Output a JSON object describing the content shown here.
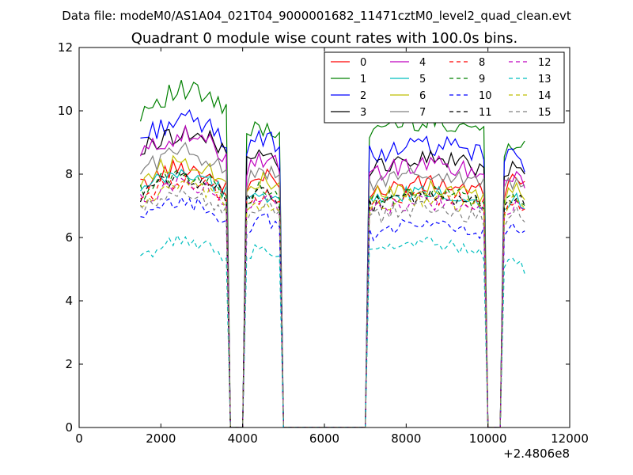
{
  "figure": {
    "suptitle": "Data file: modeM0/AS1A04_021T04_9000001682_11471cztM0_level2_quad_clean.evt"
  },
  "chart_data": {
    "type": "line",
    "title": "Quadrant 0 module wise count rates with 100.0s bins.",
    "xlabel": "",
    "ylabel": "",
    "xlim": [
      0,
      12000
    ],
    "ylim": [
      0,
      12
    ],
    "x_offset_label": "+2.4806e8",
    "x_ticks": [
      0,
      2000,
      4000,
      6000,
      8000,
      10000,
      12000
    ],
    "y_ticks": [
      0,
      2,
      4,
      6,
      8,
      10,
      12
    ],
    "grid": false,
    "legend_placement": "top-right",
    "legend_columns": 4,
    "x_segments": [
      {
        "start": 1500,
        "end": 3600,
        "step": 100
      },
      {
        "start": 3700,
        "end": 4000,
        "step": 100
      },
      {
        "start": 4100,
        "end": 4900,
        "step": 100
      },
      {
        "start": 5000,
        "end": 7000,
        "step": 100
      },
      {
        "start": 7100,
        "end": 9900,
        "step": 100
      },
      {
        "start": 10000,
        "end": 10300,
        "step": 100
      },
      {
        "start": 10400,
        "end": 10900,
        "step": 100
      }
    ],
    "series": [
      {
        "name": "0",
        "color": "#ff0000",
        "dash": "solid",
        "seg_levels": [
          7.6,
          0,
          7.6,
          0,
          7.4,
          0,
          7.5
        ]
      },
      {
        "name": "1",
        "color": "#008000",
        "dash": "solid",
        "seg_levels": [
          10.0,
          0,
          9.2,
          0,
          9.4,
          0,
          8.8
        ]
      },
      {
        "name": "2",
        "color": "#0000ff",
        "dash": "solid",
        "seg_levels": [
          9.1,
          0,
          8.8,
          0,
          8.6,
          0,
          8.3
        ]
      },
      {
        "name": "3",
        "color": "#000000",
        "dash": "solid",
        "seg_levels": [
          8.7,
          0,
          8.3,
          0,
          8.2,
          0,
          8.0
        ]
      },
      {
        "name": "4",
        "color": "#bf00bf",
        "dash": "solid",
        "seg_levels": [
          8.6,
          0,
          8.2,
          0,
          8.0,
          0,
          7.7
        ]
      },
      {
        "name": "5",
        "color": "#00bfbf",
        "dash": "solid",
        "seg_levels": [
          7.4,
          0,
          7.1,
          0,
          7.1,
          0,
          6.9
        ]
      },
      {
        "name": "6",
        "color": "#bfbf00",
        "dash": "solid",
        "seg_levels": [
          7.8,
          0,
          7.5,
          0,
          7.3,
          0,
          7.2
        ]
      },
      {
        "name": "7",
        "color": "#808080",
        "dash": "solid",
        "seg_levels": [
          8.1,
          0,
          7.8,
          0,
          7.7,
          0,
          7.5
        ]
      },
      {
        "name": "8",
        "color": "#ff0000",
        "dash": "dashed",
        "seg_levels": [
          7.2,
          0,
          7.0,
          0,
          7.0,
          0,
          6.9
        ]
      },
      {
        "name": "9",
        "color": "#008000",
        "dash": "dashed",
        "seg_levels": [
          7.4,
          0,
          7.2,
          0,
          7.1,
          0,
          7.0
        ]
      },
      {
        "name": "10",
        "color": "#0000ff",
        "dash": "dashed",
        "seg_levels": [
          6.5,
          0,
          6.3,
          0,
          6.1,
          0,
          6.0
        ]
      },
      {
        "name": "11",
        "color": "#000000",
        "dash": "dashed",
        "seg_levels": [
          7.3,
          0,
          7.1,
          0,
          7.0,
          0,
          6.9
        ]
      },
      {
        "name": "12",
        "color": "#bf00bf",
        "dash": "dashed",
        "seg_levels": [
          7.1,
          0,
          6.9,
          0,
          6.8,
          0,
          6.7
        ]
      },
      {
        "name": "13",
        "color": "#00bfbf",
        "dash": "dashed",
        "seg_levels": [
          5.3,
          0,
          5.4,
          0,
          5.5,
          0,
          5.0
        ]
      },
      {
        "name": "14",
        "color": "#bfbf00",
        "dash": "dashed",
        "seg_levels": [
          7.0,
          0,
          6.8,
          0,
          6.9,
          0,
          6.8
        ]
      },
      {
        "name": "15",
        "color": "#808080",
        "dash": "dashed",
        "seg_levels": [
          6.8,
          0,
          6.7,
          0,
          6.6,
          0,
          6.5
        ]
      }
    ]
  }
}
